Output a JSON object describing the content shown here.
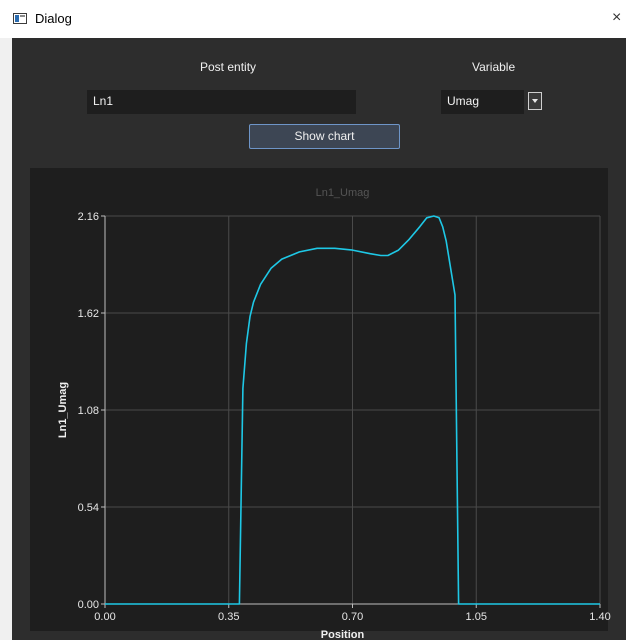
{
  "window": {
    "title": "Dialog",
    "close_glyph": "×"
  },
  "form": {
    "post_entity_label": "Post entity",
    "post_entity_value": "Ln1",
    "variable_label": "Variable",
    "variable_value": "Umag",
    "show_chart_label": "Show chart"
  },
  "colors": {
    "dialog_bg": "#2d2d2d",
    "plot_bg": "#1e1e1e",
    "series": "#1ec8e6",
    "grid": "#4a4a4a",
    "accent_border": "#6e95c8"
  },
  "chart_data": {
    "type": "line",
    "title": "Ln1_Umag",
    "xlabel": "Position",
    "ylabel": "Ln1_Umag",
    "xlim": [
      0.0,
      1.4
    ],
    "ylim": [
      0.0,
      2.16
    ],
    "xticks": [
      "0.00",
      "0.35",
      "0.70",
      "1.05",
      "1.40"
    ],
    "yticks": [
      "0.00",
      "0.54",
      "1.08",
      "1.62",
      "2.16"
    ],
    "grid": true,
    "legend": "none",
    "series": [
      {
        "x": [
          0.0,
          0.38,
          0.39,
          0.4,
          0.41,
          0.42,
          0.44,
          0.47,
          0.5,
          0.55,
          0.6,
          0.65,
          0.7,
          0.75,
          0.78,
          0.8,
          0.83,
          0.86,
          0.89,
          0.91,
          0.93,
          0.945,
          0.955,
          0.965,
          0.99,
          1.0,
          1.4
        ],
        "y": [
          0.0,
          0.0,
          1.2,
          1.45,
          1.6,
          1.68,
          1.78,
          1.87,
          1.92,
          1.96,
          1.98,
          1.98,
          1.97,
          1.95,
          1.94,
          1.94,
          1.97,
          2.03,
          2.1,
          2.15,
          2.16,
          2.15,
          2.1,
          2.02,
          1.72,
          0.0,
          0.0
        ]
      }
    ]
  }
}
